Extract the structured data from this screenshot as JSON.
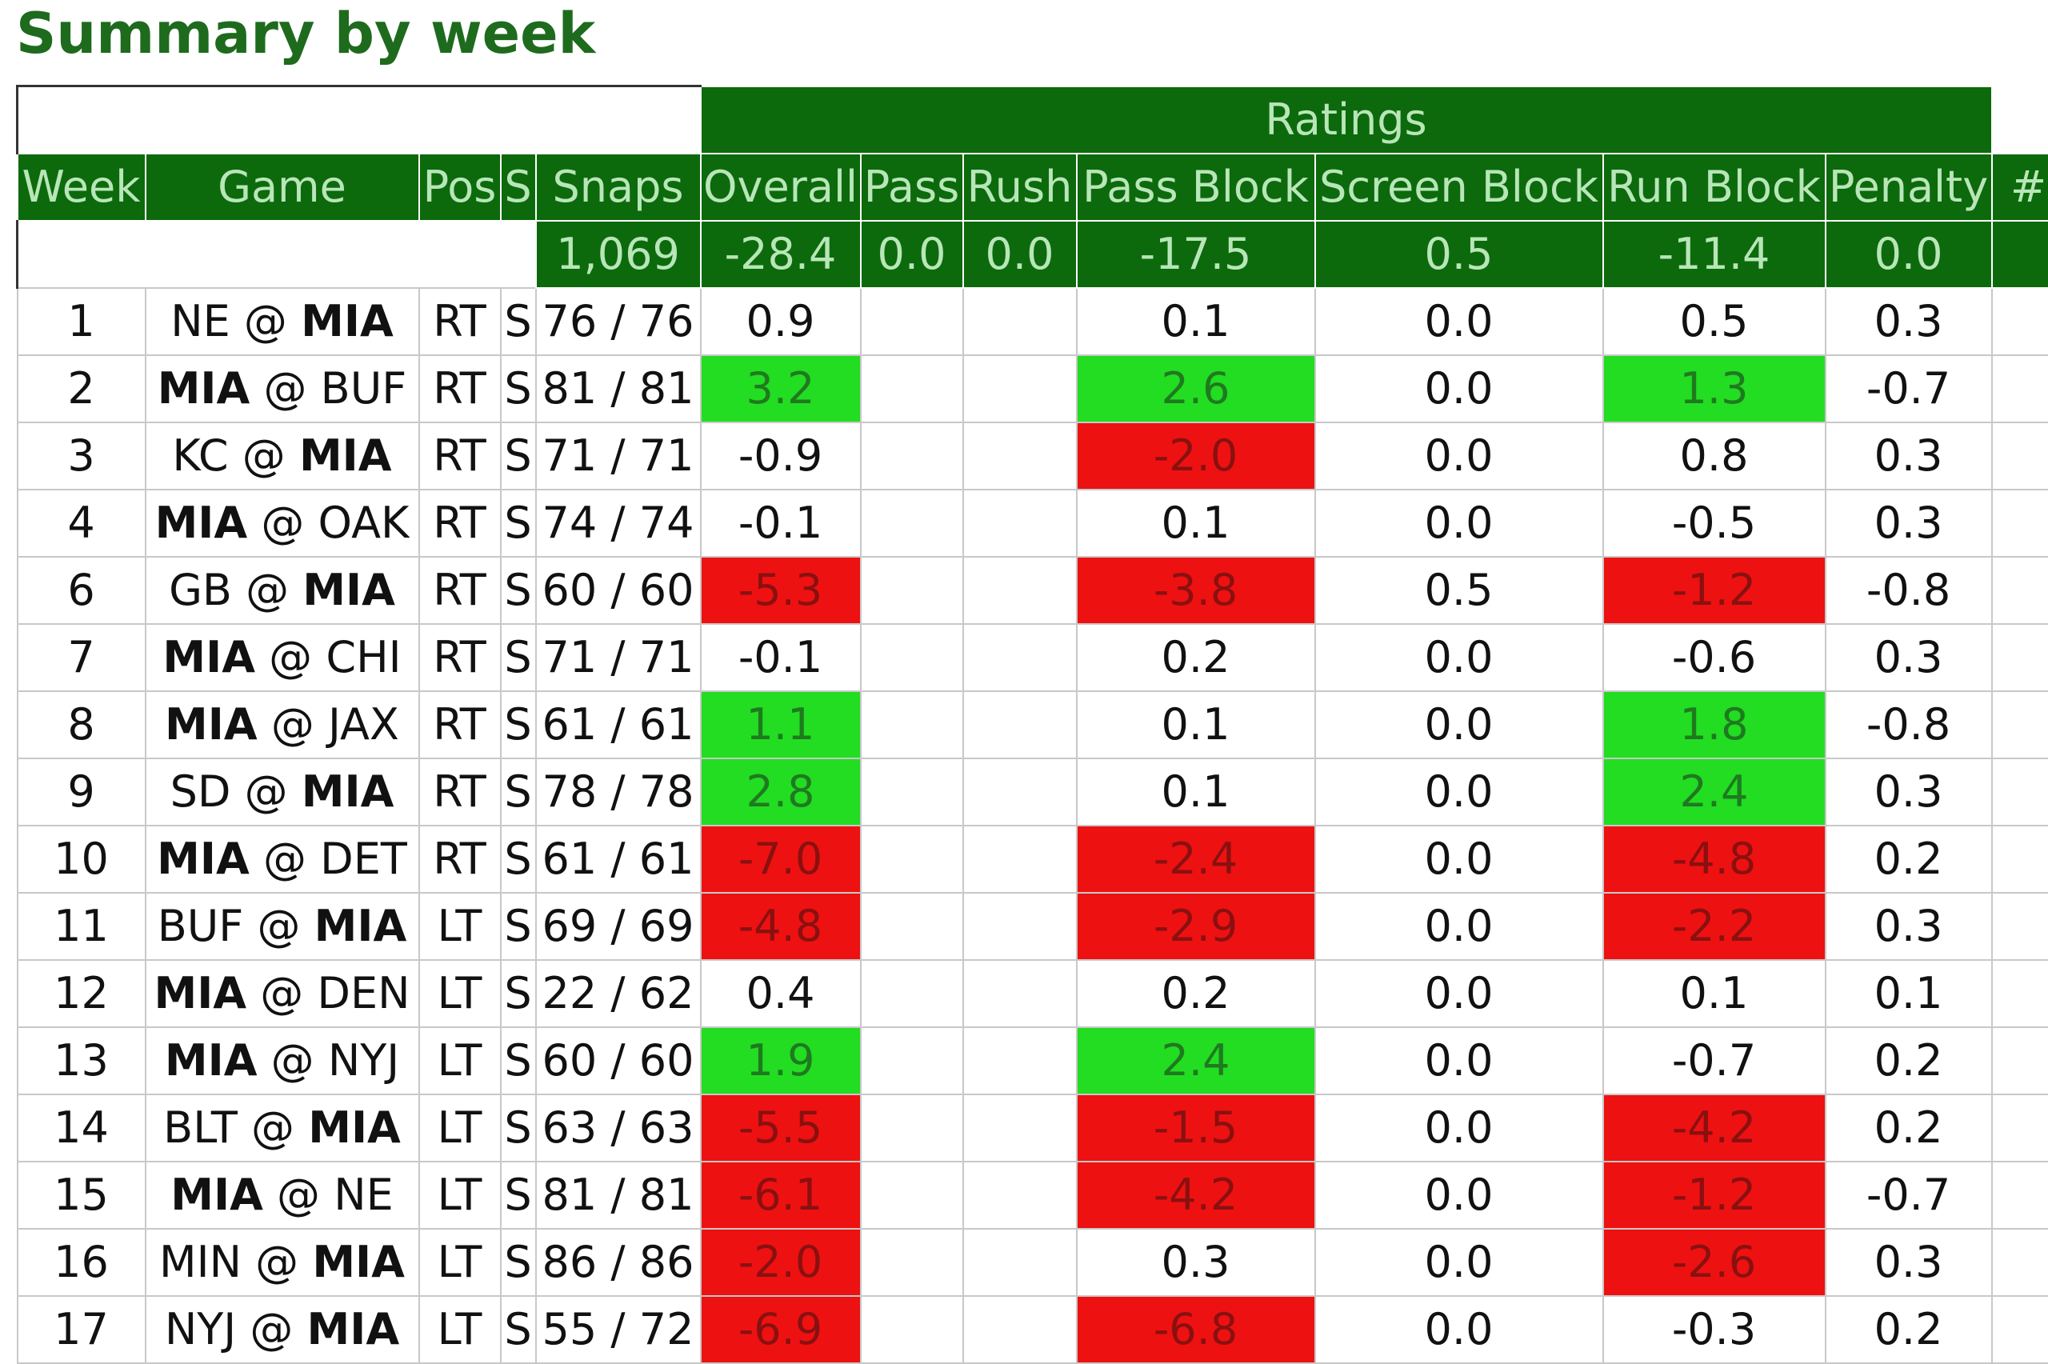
{
  "title": "Summary by week",
  "colors": {
    "header_bg": "#0c6a0c",
    "header_text": "#b8e6b8",
    "positive": "#22dd22",
    "negative": "#ee1111",
    "title": "#1e6b1e"
  },
  "table": {
    "group_header": "Ratings",
    "columns": [
      "Week",
      "Game",
      "Pos",
      "S",
      "Snaps",
      "Overall",
      "Pass",
      "Rush",
      "Pass Block",
      "Screen Block",
      "Run Block",
      "Penalty",
      "#"
    ],
    "totals": {
      "snaps": "1,069",
      "overall": "-28.4",
      "pass": "0.0",
      "rush": "0.0",
      "pass_block": "-17.5",
      "screen_block": "0.5",
      "run_block": "-11.4",
      "penalty": "0.0"
    },
    "rows": [
      {
        "week": "1",
        "away": "NE",
        "home": "MIA",
        "bold": "home",
        "pos": "RT",
        "s": "S",
        "snaps": "76 / 76",
        "overall": "0.9",
        "overall_color": "",
        "pass": "",
        "rush": "",
        "pass_block": "0.1",
        "pass_block_color": "",
        "screen_block": "0.0",
        "run_block": "0.5",
        "run_block_color": "",
        "penalty": "0.3"
      },
      {
        "week": "2",
        "away": "MIA",
        "home": "BUF",
        "bold": "away",
        "pos": "RT",
        "s": "S",
        "snaps": "81 / 81",
        "overall": "3.2",
        "overall_color": "pos",
        "pass": "",
        "rush": "",
        "pass_block": "2.6",
        "pass_block_color": "pos",
        "screen_block": "0.0",
        "run_block": "1.3",
        "run_block_color": "pos",
        "penalty": "-0.7"
      },
      {
        "week": "3",
        "away": "KC",
        "home": "MIA",
        "bold": "home",
        "pos": "RT",
        "s": "S",
        "snaps": "71 / 71",
        "overall": "-0.9",
        "overall_color": "",
        "pass": "",
        "rush": "",
        "pass_block": "-2.0",
        "pass_block_color": "neg",
        "screen_block": "0.0",
        "run_block": "0.8",
        "run_block_color": "",
        "penalty": "0.3"
      },
      {
        "week": "4",
        "away": "MIA",
        "home": "OAK",
        "bold": "away",
        "pos": "RT",
        "s": "S",
        "snaps": "74 / 74",
        "overall": "-0.1",
        "overall_color": "",
        "pass": "",
        "rush": "",
        "pass_block": "0.1",
        "pass_block_color": "",
        "screen_block": "0.0",
        "run_block": "-0.5",
        "run_block_color": "",
        "penalty": "0.3"
      },
      {
        "week": "6",
        "away": "GB",
        "home": "MIA",
        "bold": "home",
        "pos": "RT",
        "s": "S",
        "snaps": "60 / 60",
        "overall": "-5.3",
        "overall_color": "neg",
        "pass": "",
        "rush": "",
        "pass_block": "-3.8",
        "pass_block_color": "neg",
        "screen_block": "0.5",
        "run_block": "-1.2",
        "run_block_color": "neg",
        "penalty": "-0.8"
      },
      {
        "week": "7",
        "away": "MIA",
        "home": "CHI",
        "bold": "away",
        "pos": "RT",
        "s": "S",
        "snaps": "71 / 71",
        "overall": "-0.1",
        "overall_color": "",
        "pass": "",
        "rush": "",
        "pass_block": "0.2",
        "pass_block_color": "",
        "screen_block": "0.0",
        "run_block": "-0.6",
        "run_block_color": "",
        "penalty": "0.3"
      },
      {
        "week": "8",
        "away": "MIA",
        "home": "JAX",
        "bold": "away",
        "pos": "RT",
        "s": "S",
        "snaps": "61 / 61",
        "overall": "1.1",
        "overall_color": "pos",
        "pass": "",
        "rush": "",
        "pass_block": "0.1",
        "pass_block_color": "",
        "screen_block": "0.0",
        "run_block": "1.8",
        "run_block_color": "pos",
        "penalty": "-0.8"
      },
      {
        "week": "9",
        "away": "SD",
        "home": "MIA",
        "bold": "home",
        "pos": "RT",
        "s": "S",
        "snaps": "78 / 78",
        "overall": "2.8",
        "overall_color": "pos",
        "pass": "",
        "rush": "",
        "pass_block": "0.1",
        "pass_block_color": "",
        "screen_block": "0.0",
        "run_block": "2.4",
        "run_block_color": "pos",
        "penalty": "0.3"
      },
      {
        "week": "10",
        "away": "MIA",
        "home": "DET",
        "bold": "away",
        "pos": "RT",
        "s": "S",
        "snaps": "61 / 61",
        "overall": "-7.0",
        "overall_color": "neg",
        "pass": "",
        "rush": "",
        "pass_block": "-2.4",
        "pass_block_color": "neg",
        "screen_block": "0.0",
        "run_block": "-4.8",
        "run_block_color": "neg",
        "penalty": "0.2"
      },
      {
        "week": "11",
        "away": "BUF",
        "home": "MIA",
        "bold": "home",
        "pos": "LT",
        "s": "S",
        "snaps": "69 / 69",
        "overall": "-4.8",
        "overall_color": "neg",
        "pass": "",
        "rush": "",
        "pass_block": "-2.9",
        "pass_block_color": "neg",
        "screen_block": "0.0",
        "run_block": "-2.2",
        "run_block_color": "neg",
        "penalty": "0.3"
      },
      {
        "week": "12",
        "away": "MIA",
        "home": "DEN",
        "bold": "away",
        "pos": "LT",
        "s": "S",
        "snaps": "22 / 62",
        "overall": "0.4",
        "overall_color": "",
        "pass": "",
        "rush": "",
        "pass_block": "0.2",
        "pass_block_color": "",
        "screen_block": "0.0",
        "run_block": "0.1",
        "run_block_color": "",
        "penalty": "0.1"
      },
      {
        "week": "13",
        "away": "MIA",
        "home": "NYJ",
        "bold": "away",
        "pos": "LT",
        "s": "S",
        "snaps": "60 / 60",
        "overall": "1.9",
        "overall_color": "pos",
        "pass": "",
        "rush": "",
        "pass_block": "2.4",
        "pass_block_color": "pos",
        "screen_block": "0.0",
        "run_block": "-0.7",
        "run_block_color": "",
        "penalty": "0.2"
      },
      {
        "week": "14",
        "away": "BLT",
        "home": "MIA",
        "bold": "home",
        "pos": "LT",
        "s": "S",
        "snaps": "63 / 63",
        "overall": "-5.5",
        "overall_color": "neg",
        "pass": "",
        "rush": "",
        "pass_block": "-1.5",
        "pass_block_color": "neg",
        "screen_block": "0.0",
        "run_block": "-4.2",
        "run_block_color": "neg",
        "penalty": "0.2"
      },
      {
        "week": "15",
        "away": "MIA",
        "home": "NE",
        "bold": "away",
        "pos": "LT",
        "s": "S",
        "snaps": "81 / 81",
        "overall": "-6.1",
        "overall_color": "neg",
        "pass": "",
        "rush": "",
        "pass_block": "-4.2",
        "pass_block_color": "neg",
        "screen_block": "0.0",
        "run_block": "-1.2",
        "run_block_color": "neg",
        "penalty": "-0.7"
      },
      {
        "week": "16",
        "away": "MIN",
        "home": "MIA",
        "bold": "home",
        "pos": "LT",
        "s": "S",
        "snaps": "86 / 86",
        "overall": "-2.0",
        "overall_color": "neg",
        "pass": "",
        "rush": "",
        "pass_block": "0.3",
        "pass_block_color": "",
        "screen_block": "0.0",
        "run_block": "-2.6",
        "run_block_color": "neg",
        "penalty": "0.3"
      },
      {
        "week": "17",
        "away": "NYJ",
        "home": "MIA",
        "bold": "home",
        "pos": "LT",
        "s": "S",
        "snaps": "55 / 72",
        "overall": "-6.9",
        "overall_color": "neg",
        "pass": "",
        "rush": "",
        "pass_block": "-6.8",
        "pass_block_color": "neg",
        "screen_block": "0.0",
        "run_block": "-0.3",
        "run_block_color": "",
        "penalty": "0.2"
      }
    ]
  }
}
